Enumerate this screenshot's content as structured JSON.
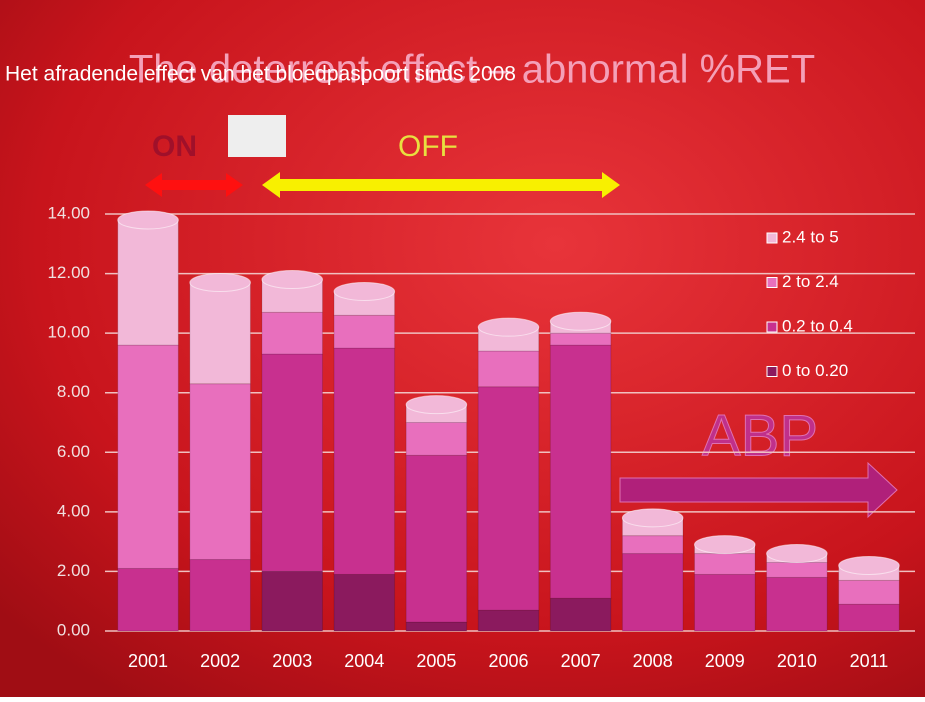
{
  "chart_data": {
    "type": "stacked_bar",
    "title": "The deterrent effect – abnormal %RET",
    "subtitle": "Het afradende effect van het bloedpaspoort sinds 2008",
    "annotations": [
      "ON",
      "OFF",
      "ABP"
    ],
    "categories": [
      "2001",
      "2002",
      "2003",
      "2004",
      "2005",
      "2006",
      "2007",
      "2008",
      "2009",
      "2010",
      "2011"
    ],
    "series": [
      {
        "name": "0 to 0.20",
        "color": "#8b1a5e",
        "values": [
          0,
          0,
          2.0,
          1.9,
          0.3,
          0.7,
          1.1,
          0,
          0,
          0,
          0
        ]
      },
      {
        "name": "0.2 to 0.4",
        "color": "#c8308f",
        "values": [
          2.1,
          2.4,
          7.3,
          7.6,
          5.6,
          7.5,
          8.5,
          2.6,
          1.9,
          1.8,
          0.9
        ]
      },
      {
        "name": "2 to 2.4",
        "color": "#e86fbd",
        "values": [
          7.5,
          5.9,
          1.4,
          1.1,
          1.1,
          1.2,
          0.4,
          0.6,
          0.7,
          0.5,
          0.8
        ]
      },
      {
        "name": "2.4 to 5",
        "color": "#f2b8d8",
        "values": [
          4.2,
          3.4,
          1.1,
          0.8,
          0.6,
          0.8,
          0.4,
          0.6,
          0.3,
          0.3,
          0.5
        ]
      }
    ],
    "ylim": [
      0,
      14
    ],
    "yticks": [
      {
        "value": 0,
        "label": "0.00"
      },
      {
        "value": 2,
        "label": "2.00"
      },
      {
        "value": 4,
        "label": "4.00"
      },
      {
        "value": 6,
        "label": "6.00"
      },
      {
        "value": 8,
        "label": "8.00"
      },
      {
        "value": 10,
        "label": "10.00"
      },
      {
        "value": 12,
        "label": "12.00"
      },
      {
        "value": 14,
        "label": "14.00"
      }
    ],
    "grid": true
  }
}
